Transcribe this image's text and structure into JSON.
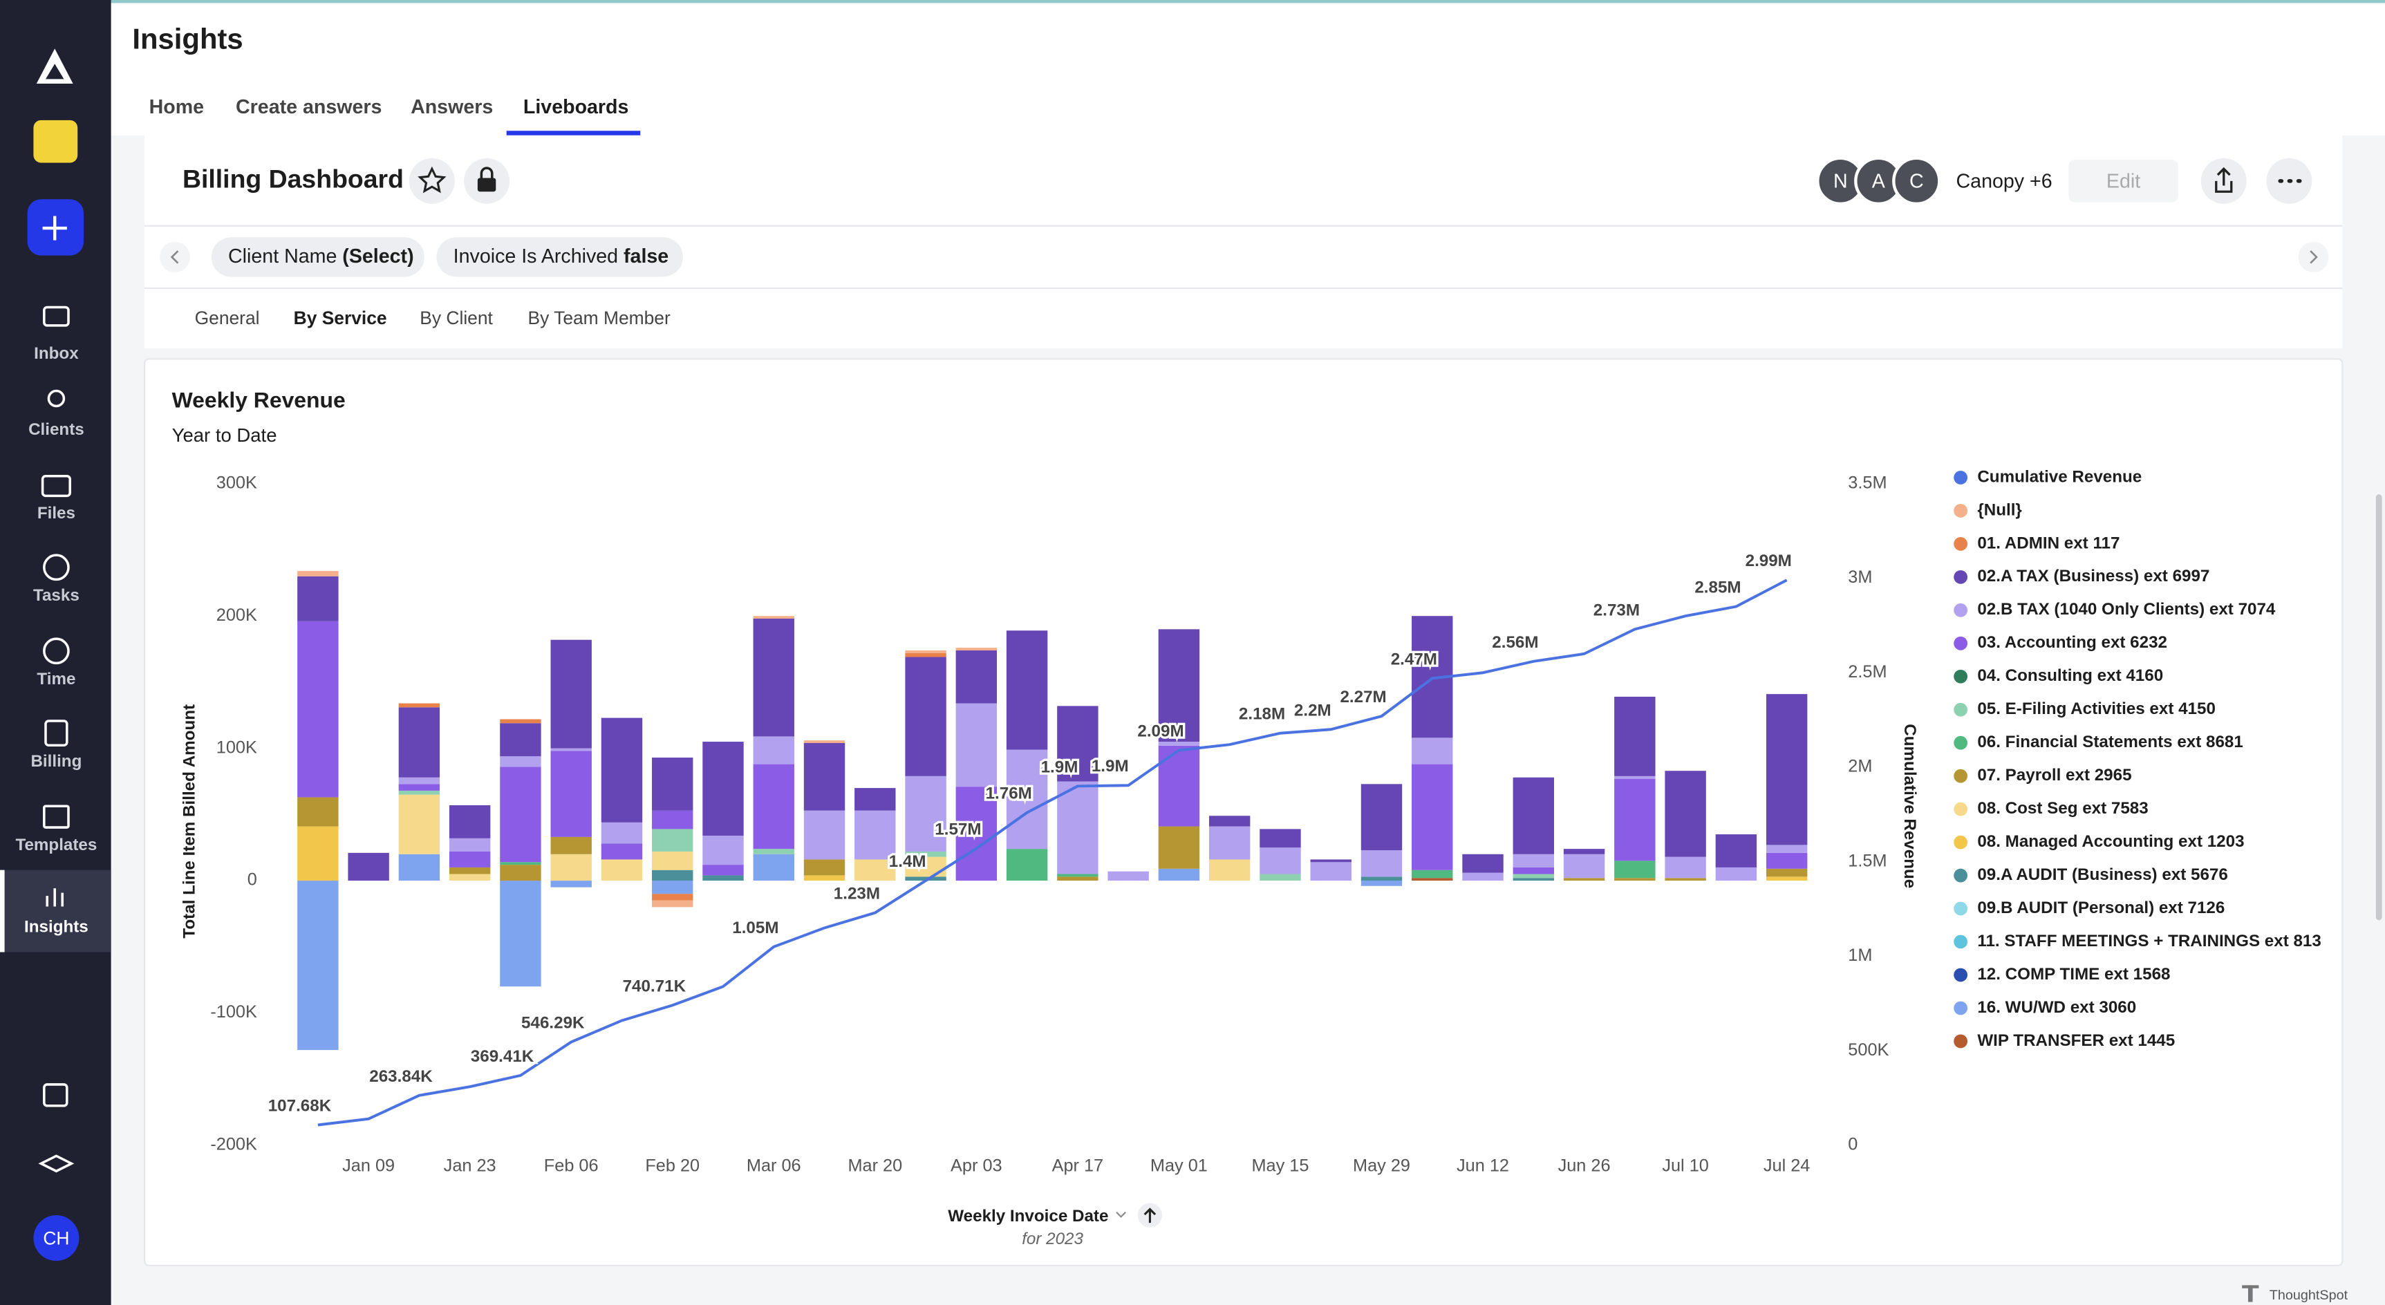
{
  "sidebar": {
    "items": [
      "Inbox",
      "Clients",
      "Files",
      "Tasks",
      "Time",
      "Billing",
      "Templates",
      "Insights"
    ],
    "avatar": "CH"
  },
  "header": {
    "title": "Insights",
    "tabs": [
      "Home",
      "Create answers",
      "Answers",
      "Liveboards"
    ]
  },
  "liveboard": {
    "title": "Billing Dashboard",
    "avatars": [
      "N",
      "A",
      "C"
    ],
    "members": "Canopy +6",
    "edit": "Edit",
    "filters": [
      {
        "label": "Client Name",
        "value": "(Select)"
      },
      {
        "label": "Invoice Is Archived",
        "value": "false"
      }
    ],
    "tabs": [
      "General",
      "By Service",
      "By Client",
      "By Team Member"
    ]
  },
  "chart_data": {
    "type": "bar",
    "stacked": true,
    "title": "Weekly Revenue",
    "subtitle": "Year to Date",
    "ylabel": "Total Line Item Billed Amount",
    "y2label": "Cumulative Revenue",
    "xlabel": "Weekly Invoice Date",
    "xlabel_note": "for 2023",
    "categories": [
      null,
      "Jan 09",
      null,
      "Jan 23",
      null,
      "Feb 06",
      null,
      "Feb 20",
      null,
      "Mar 06",
      null,
      "Mar 20",
      null,
      "Apr 03",
      null,
      "Apr 17",
      null,
      "May 01",
      null,
      "May 15",
      null,
      "May 29",
      null,
      "Jun 12",
      null,
      "Jun 26",
      null,
      "Jul 10",
      null,
      "Jul 24"
    ],
    "ylim": [
      -200000,
      300000
    ],
    "yticks": [
      {
        "value": -200000,
        "label": "-200K"
      },
      {
        "value": -100000,
        "label": "-100K"
      },
      0,
      {
        "value": 100000,
        "label": "100K"
      },
      {
        "value": 200000,
        "label": "200K"
      },
      {
        "value": 300000,
        "label": "300K"
      }
    ],
    "y2lim": [
      0,
      3500000
    ],
    "y2ticks": [
      0,
      {
        "value": 500000,
        "label": "500K"
      },
      {
        "value": 1000000,
        "label": "1M"
      },
      {
        "value": 1500000,
        "label": "1.5M"
      },
      {
        "value": 2000000,
        "label": "2M"
      },
      {
        "value": 2500000,
        "label": "2.5M"
      },
      {
        "value": 3000000,
        "label": "3M"
      },
      {
        "value": 3500000,
        "label": "3.5M"
      }
    ],
    "legend": "right",
    "series": [
      {
        "name": "Cumulative Revenue",
        "type": "line",
        "axis": "y2",
        "color": "#4a72e0",
        "values": [
          107680,
          140000,
          263840,
          310000,
          369410,
          546290,
          660000,
          740710,
          840000,
          1050000,
          1150000,
          1230000,
          1400000,
          1570000,
          1760000,
          1900000,
          1904000,
          2090000,
          2120000,
          2180000,
          2200000,
          2270000,
          2470000,
          2500000,
          2560000,
          2600000,
          2730000,
          2800000,
          2850000,
          2990000
        ],
        "value_labels": [
          "107.68K",
          null,
          "263.84K",
          null,
          "369.41K",
          "546.29K",
          null,
          "740.71K",
          null,
          "1.05M",
          null,
          "1.23M",
          "1.4M",
          "1.57M",
          "1.76M",
          "1.9M",
          "1.9M",
          "2.09M",
          null,
          "2.18M",
          "2.2M",
          "2.27M",
          "2.47M",
          null,
          "2.56M",
          null,
          "2.73M",
          null,
          "2.85M",
          "2.99M"
        ]
      },
      {
        "name": "{Null}",
        "color": "#f4b08a",
        "values": [
          4000,
          0,
          0,
          0,
          0,
          0,
          0,
          -5000,
          0,
          2000,
          2000,
          0,
          2000,
          2000,
          0,
          0,
          0,
          0,
          0,
          0,
          0,
          0,
          0,
          0,
          0,
          0,
          0,
          0,
          0,
          0
        ]
      },
      {
        "name": "01. ADMIN ext 117",
        "color": "#e8824a",
        "values": [
          0,
          0,
          3000,
          0,
          3000,
          0,
          0,
          -5000,
          0,
          0,
          0,
          0,
          3000,
          0,
          0,
          0,
          0,
          0,
          0,
          0,
          0,
          0,
          0,
          0,
          0,
          0,
          0,
          0,
          0,
          0
        ]
      },
      {
        "name": "02.A TAX (Business) ext 6997",
        "color": "#6546b4",
        "values": [
          34000,
          21000,
          53000,
          25000,
          25000,
          82000,
          79000,
          40000,
          71000,
          89000,
          51000,
          17000,
          90000,
          40000,
          90000,
          57000,
          0,
          85000,
          8000,
          14000,
          2000,
          50000,
          92000,
          14000,
          58000,
          4000,
          60000,
          65000,
          25000,
          114000
        ]
      },
      {
        "name": "02.B TAX (1040 Only Clients) ext 7074",
        "color": "#b1a1ee",
        "values": [
          0,
          0,
          5000,
          10000,
          8000,
          2000,
          16000,
          0,
          22000,
          21000,
          37000,
          37000,
          57000,
          63000,
          75000,
          70000,
          7000,
          3000,
          25000,
          20000,
          14000,
          20000,
          20000,
          6000,
          10000,
          18000,
          2000,
          16000,
          10000,
          6000
        ]
      },
      {
        "name": "03. Accounting ext 6232",
        "color": "#8b5ce6",
        "values": [
          133000,
          0,
          5000,
          12000,
          72000,
          65000,
          12000,
          14000,
          8000,
          64000,
          0,
          0,
          0,
          71000,
          0,
          0,
          0,
          61000,
          0,
          0,
          0,
          0,
          80000,
          0,
          5000,
          0,
          62000,
          0,
          0,
          12000
        ]
      },
      {
        "name": "04. Consulting ext 4160",
        "color": "#2f7d5a",
        "values": [
          0,
          0,
          0,
          0,
          0,
          0,
          0,
          0,
          0,
          0,
          0,
          0,
          0,
          0,
          0,
          0,
          0,
          0,
          0,
          0,
          0,
          0,
          0,
          0,
          0,
          0,
          0,
          0,
          0,
          0
        ]
      },
      {
        "name": "05. E-Filing Activities ext 4150",
        "color": "#8ed1b0",
        "values": [
          0,
          0,
          3000,
          0,
          0,
          0,
          0,
          17000,
          0,
          4000,
          0,
          0,
          4000,
          0,
          0,
          0,
          0,
          0,
          0,
          5000,
          0,
          0,
          0,
          0,
          3000,
          0,
          0,
          0,
          0,
          0
        ]
      },
      {
        "name": "06. Financial Statements ext 8681",
        "color": "#4fb980",
        "values": [
          0,
          0,
          0,
          0,
          2000,
          0,
          0,
          0,
          0,
          0,
          0,
          0,
          0,
          0,
          24000,
          2000,
          0,
          0,
          0,
          0,
          0,
          0,
          6000,
          0,
          0,
          0,
          13000,
          0,
          0,
          0
        ]
      },
      {
        "name": "07. Payroll ext 2965",
        "color": "#b59633",
        "values": [
          22000,
          0,
          0,
          5000,
          12000,
          13000,
          0,
          0,
          0,
          0,
          12000,
          0,
          0,
          0,
          0,
          3000,
          0,
          32000,
          0,
          0,
          0,
          0,
          0,
          0,
          0,
          2000,
          2000,
          2000,
          0,
          6000
        ]
      },
      {
        "name": "08. Cost Seg ext 7583",
        "color": "#f6d98a",
        "values": [
          0,
          0,
          45000,
          5000,
          0,
          20000,
          16000,
          14000,
          0,
          0,
          0,
          16000,
          15000,
          0,
          0,
          0,
          0,
          0,
          16000,
          0,
          0,
          0,
          0,
          0,
          0,
          0,
          0,
          0,
          0,
          0
        ]
      },
      {
        "name": "08. Managed Accounting ext 1203",
        "color": "#f2c64a",
        "values": [
          41000,
          0,
          0,
          0,
          0,
          0,
          0,
          0,
          0,
          0,
          4000,
          0,
          0,
          0,
          0,
          0,
          0,
          0,
          0,
          0,
          0,
          0,
          0,
          0,
          0,
          0,
          0,
          0,
          0,
          3000
        ]
      },
      {
        "name": "09.A AUDIT (Business) ext 5676",
        "color": "#4a8f9a",
        "values": [
          0,
          0,
          0,
          0,
          0,
          0,
          0,
          8000,
          4000,
          0,
          0,
          0,
          3000,
          0,
          0,
          0,
          0,
          0,
          0,
          0,
          0,
          3000,
          0,
          0,
          2000,
          0,
          0,
          0,
          0,
          0
        ]
      },
      {
        "name": "09.B AUDIT (Personal) ext 7126",
        "color": "#8fd8e8",
        "values": [
          0,
          0,
          0,
          0,
          0,
          0,
          0,
          0,
          0,
          0,
          0,
          0,
          0,
          0,
          0,
          0,
          0,
          0,
          0,
          0,
          0,
          0,
          0,
          0,
          0,
          0,
          0,
          0,
          0,
          0
        ]
      },
      {
        "name": "11. STAFF MEETINGS + TRAININGS ext 813",
        "color": "#5ec4de",
        "values": [
          0,
          0,
          0,
          0,
          0,
          0,
          0,
          0,
          0,
          0,
          0,
          0,
          0,
          0,
          0,
          0,
          0,
          0,
          0,
          0,
          0,
          0,
          0,
          0,
          0,
          0,
          0,
          0,
          0,
          0
        ]
      },
      {
        "name": "12. COMP TIME ext 1568",
        "color": "#2b4fb0",
        "values": [
          0,
          0,
          0,
          0,
          0,
          0,
          0,
          0,
          0,
          0,
          0,
          0,
          0,
          0,
          0,
          0,
          0,
          0,
          0,
          0,
          0,
          0,
          0,
          0,
          0,
          0,
          0,
          0,
          0,
          0
        ]
      },
      {
        "name": "16. WU/WD ext 3060",
        "color": "#7ea4ef",
        "values": [
          -128000,
          0,
          20000,
          0,
          -80000,
          -5000,
          0,
          -10000,
          0,
          20000,
          0,
          0,
          0,
          0,
          0,
          0,
          0,
          9000,
          0,
          0,
          0,
          -4000,
          0,
          0,
          0,
          0,
          0,
          0,
          0,
          0
        ]
      },
      {
        "name": "WIP TRANSFER ext 1445",
        "color": "#b65a30",
        "values": [
          0,
          0,
          0,
          0,
          0,
          0,
          0,
          0,
          0,
          0,
          0,
          0,
          0,
          0,
          0,
          0,
          0,
          0,
          0,
          0,
          0,
          0,
          2000,
          0,
          0,
          0,
          0,
          0,
          0,
          0
        ]
      }
    ]
  },
  "footer": {
    "brand": "ThoughtSpot"
  }
}
